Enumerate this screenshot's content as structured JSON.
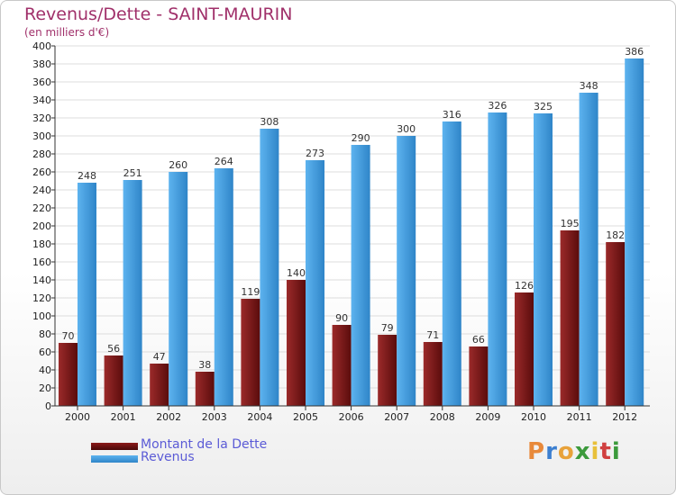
{
  "chart_data": {
    "type": "bar",
    "title": "Revenus/Dette - SAINT-MAURIN",
    "subtitle": "(en milliers d'€)",
    "categories": [
      "2000",
      "2001",
      "2002",
      "2003",
      "2004",
      "2005",
      "2006",
      "2007",
      "2008",
      "2009",
      "2010",
      "2011",
      "2012"
    ],
    "series": [
      {
        "name": "Montant de la Dette",
        "values": [
          70,
          56,
          47,
          38,
          119,
          140,
          90,
          79,
          71,
          66,
          126,
          195,
          182
        ],
        "color": "#8b1a1a"
      },
      {
        "name": "Revenus",
        "values": [
          248,
          251,
          260,
          264,
          308,
          273,
          290,
          300,
          316,
          326,
          325,
          348,
          386
        ],
        "color": "#3b9be0"
      }
    ],
    "y_ticks": [
      0,
      20,
      40,
      60,
      80,
      100,
      120,
      140,
      160,
      180,
      200,
      220,
      240,
      260,
      280,
      300,
      320,
      340,
      360,
      380,
      400
    ],
    "ylim": [
      0,
      400
    ],
    "grid": true,
    "legend_position": "bottom-left"
  },
  "colors": {
    "title": "#a0306a",
    "legend_text": "#5b5bd6",
    "debt_bar_light": "#9b2a2a",
    "debt_bar_dark": "#5a0c0c",
    "revenue_bar_light": "#5db3ef",
    "revenue_bar_dark": "#2f85c8"
  },
  "logo": {
    "letters": [
      "P",
      "r",
      "o",
      "x",
      "i",
      "t",
      "i"
    ],
    "letter_colors": [
      "#e8893a",
      "#3c7fd0",
      "#e8a23a",
      "#3c9a3c",
      "#e8c03a",
      "#d04040",
      "#3c9a3c"
    ]
  }
}
